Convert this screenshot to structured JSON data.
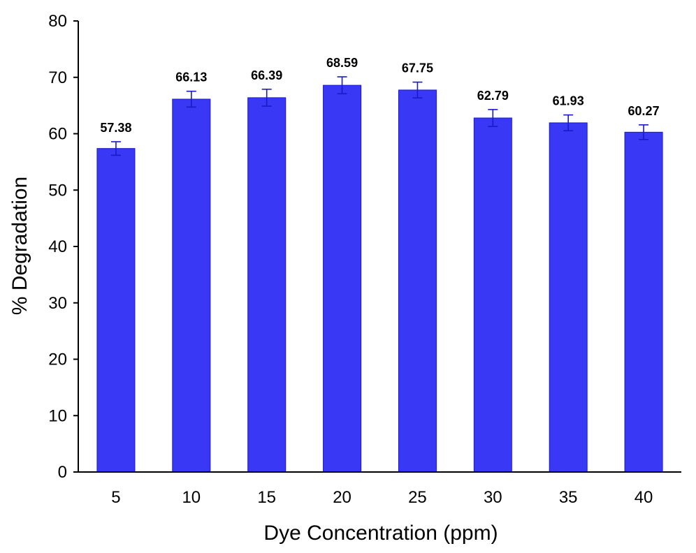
{
  "chart_data": {
    "type": "bar",
    "title": "",
    "xlabel": "Dye Concentration (ppm)",
    "ylabel": "% Degradation",
    "categories": [
      "5",
      "10",
      "15",
      "20",
      "25",
      "30",
      "35",
      "40"
    ],
    "values": [
      57.38,
      66.13,
      66.39,
      68.59,
      67.75,
      62.79,
      61.93,
      60.27
    ],
    "errors": [
      1.2,
      1.4,
      1.5,
      1.5,
      1.4,
      1.5,
      1.4,
      1.3
    ],
    "data_labels": [
      "57.38",
      "66.13",
      "66.39",
      "68.59",
      "67.75",
      "62.79",
      "61.93",
      "60.27"
    ],
    "ylim": [
      0,
      80
    ],
    "yticks": [
      0,
      10,
      20,
      30,
      40,
      50,
      60,
      70,
      80
    ],
    "bar_color": "#3838F5",
    "bar_edge_color": "#1A1AC8",
    "error_bar_color": "#1A1AC8",
    "axis_color": "#000000",
    "grid": false,
    "legend": "none"
  }
}
